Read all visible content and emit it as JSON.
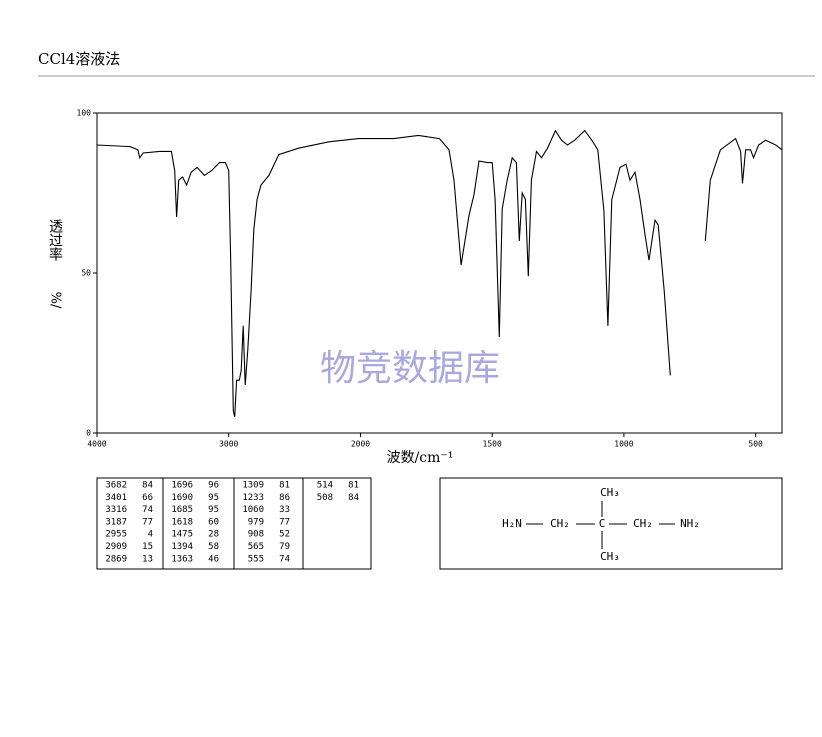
{
  "header": {
    "title": "CCl4溶液法"
  },
  "chart_data": {
    "type": "line",
    "x_scale": "piecewise",
    "color": "#000000",
    "x": [
      4000,
      3750,
      3690,
      3675,
      3650,
      3525,
      3435,
      3410,
      3396,
      3380,
      3350,
      3320,
      3285,
      3240,
      3185,
      3130,
      3070,
      3025,
      3000,
      2985,
      2965,
      2955,
      2940,
      2920,
      2905,
      2890,
      2875,
      2855,
      2830,
      2810,
      2785,
      2755,
      2695,
      2620,
      2470,
      2240,
      2015,
      1874,
      1780,
      1700,
      1664,
      1645,
      1618,
      1588,
      1569,
      1550,
      1519,
      1500,
      1489,
      1473,
      1462,
      1443,
      1424,
      1408,
      1397,
      1386,
      1374,
      1363,
      1351,
      1332,
      1313,
      1290,
      1260,
      1237,
      1214,
      1187,
      1149,
      1122,
      1099,
      1076,
      1061,
      1046,
      1015,
      992,
      977,
      958,
      939,
      920,
      905,
      882,
      870,
      847,
      824,
      750,
      691,
      672,
      634,
      576,
      557,
      550,
      538,
      519,
      508,
      489,
      462,
      424,
      400
    ],
    "values": [
      90,
      89.5,
      88.5,
      86,
      87.5,
      88,
      88,
      82,
      67.5,
      79,
      80,
      77.5,
      81.5,
      83,
      80.5,
      82,
      84.5,
      84.5,
      82,
      54,
      7,
      5,
      16.5,
      16.5,
      19.5,
      33.5,
      15,
      26,
      44.5,
      63.5,
      73,
      77.5,
      80.5,
      87,
      89,
      91,
      92,
      92,
      93,
      92,
      88.5,
      79,
      52.5,
      68,
      74.5,
      85,
      84.5,
      84.5,
      73,
      30,
      70,
      79,
      86,
      84.5,
      60,
      75,
      73,
      49,
      79,
      88,
      86,
      89,
      94.5,
      91.5,
      90,
      91.5,
      94.5,
      91.5,
      88.5,
      69.5,
      33.5,
      73,
      83,
      84,
      79,
      81.5,
      73,
      62,
      54,
      66.5,
      65,
      44.5,
      18,
      null,
      60,
      79,
      88.5,
      92,
      88,
      78,
      88.5,
      88.5,
      86,
      90,
      91.5,
      90,
      88.5
    ],
    "xlim": [
      4000,
      400
    ],
    "xticks": [
      4000,
      3000,
      2000,
      1500,
      1000,
      500
    ],
    "ylim": [
      0,
      100
    ],
    "yticks": [
      0,
      50,
      100
    ],
    "x_label": "波数/cm⁻¹",
    "y_label": "透过率",
    "y_unit": "%/",
    "watermark": "物竞数据库"
  },
  "peak_table": {
    "columns": [
      [
        [
          3682,
          84
        ],
        [
          3401,
          66
        ],
        [
          3316,
          74
        ],
        [
          3187,
          77
        ],
        [
          2955,
          4
        ],
        [
          2909,
          15
        ],
        [
          2869,
          13
        ]
      ],
      [
        [
          1696,
          96
        ],
        [
          1690,
          95
        ],
        [
          1685,
          95
        ],
        [
          1618,
          60
        ],
        [
          1475,
          28
        ],
        [
          1394,
          58
        ],
        [
          1363,
          46
        ]
      ],
      [
        [
          1309,
          81
        ],
        [
          1233,
          86
        ],
        [
          1060,
          33
        ],
        [
          979,
          77
        ],
        [
          908,
          52
        ],
        [
          565,
          79
        ],
        [
          555,
          74
        ]
      ],
      [
        [
          514,
          81
        ],
        [
          508,
          84
        ]
      ]
    ]
  },
  "structure": {
    "top": "CH₃",
    "left": "H₂N",
    "ch2_left": "CH₂",
    "center": "C",
    "ch2_right": "CH₂",
    "right": "NH₂",
    "bottom": "CH₃"
  }
}
